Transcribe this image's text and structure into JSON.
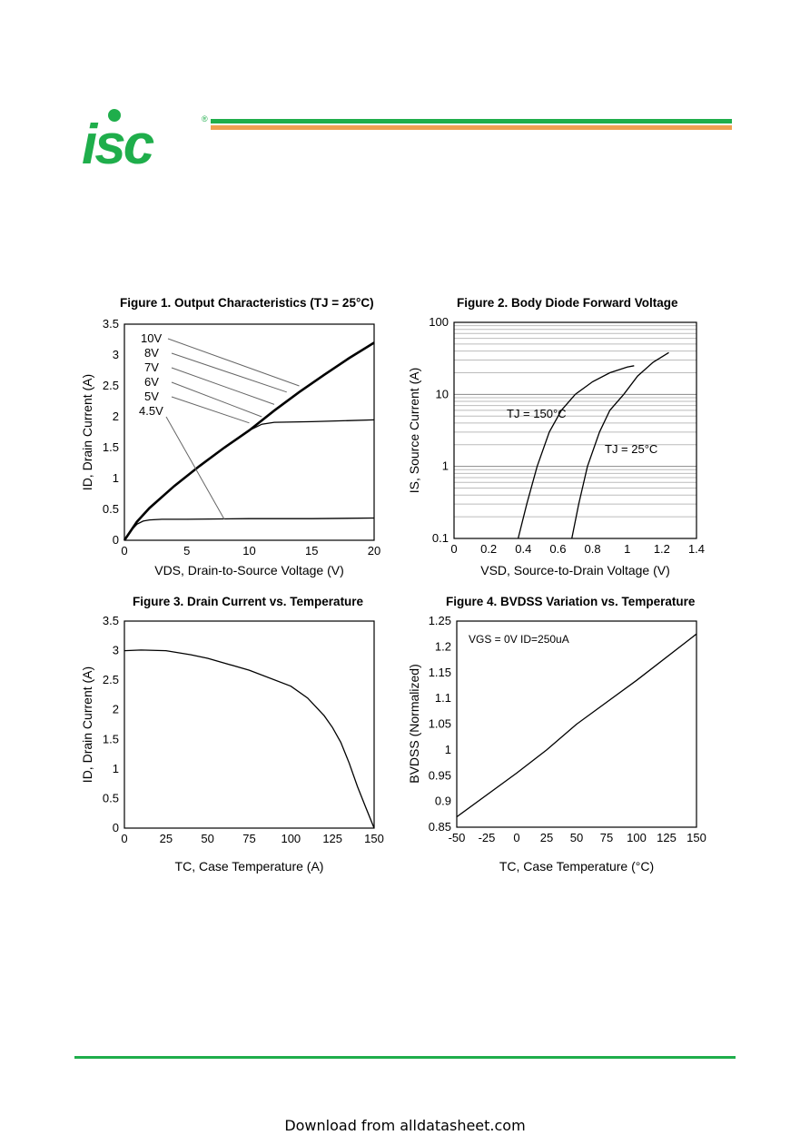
{
  "header": {
    "logo_text": "isc",
    "logo_mark": "®",
    "colors": {
      "brand_green": "#1fae4b",
      "brand_orange": "#f0a050"
    }
  },
  "footer": {
    "text": "Download from alldatasheet.com"
  },
  "chart_data": [
    {
      "type": "line",
      "title": "Figure 1. Output Characteristics (TJ = 25°C)",
      "xlabel": "VDS, Drain-to-Source Voltage (V)",
      "ylabel": "ID, Drain Current (A)",
      "xlim": [
        0,
        20
      ],
      "ylim": [
        0,
        3.5
      ],
      "xticks": [
        "0",
        "5",
        "10",
        "15",
        "20"
      ],
      "yticks": [
        "0",
        "0.5",
        "1",
        "1.5",
        "2",
        "2.5",
        "3",
        "3.5"
      ],
      "yscale": "linear",
      "grid": false,
      "annotations": [
        "10V",
        "8V",
        "7V",
        "6V",
        "5V",
        "4.5V"
      ],
      "series": [
        {
          "name": "10V",
          "x": [
            0,
            1,
            2,
            4,
            6,
            8,
            10,
            12,
            14,
            16,
            18,
            20
          ],
          "y": [
            0,
            0.3,
            0.52,
            0.88,
            1.2,
            1.5,
            1.78,
            2.1,
            2.4,
            2.68,
            2.95,
            3.2
          ]
        },
        {
          "name": "6V",
          "x": [
            0,
            1,
            2,
            4,
            6,
            8,
            10,
            11,
            12,
            15,
            20
          ],
          "y": [
            0,
            0.3,
            0.52,
            0.88,
            1.2,
            1.5,
            1.78,
            1.88,
            1.91,
            1.92,
            1.95
          ]
        },
        {
          "name": "4.5V",
          "x": [
            0,
            0.5,
            1,
            1.5,
            2,
            3,
            5,
            10,
            15,
            20
          ],
          "y": [
            0,
            0.15,
            0.26,
            0.31,
            0.33,
            0.34,
            0.34,
            0.35,
            0.35,
            0.36
          ]
        }
      ]
    },
    {
      "type": "line",
      "title": "Figure 2. Body Diode Forward Voltage",
      "xlabel": "VSD, Source-to-Drain Voltage (V)",
      "ylabel": "IS, Source Current (A)",
      "xlim": [
        0,
        1.4
      ],
      "ylim": [
        0.1,
        100
      ],
      "xticks": [
        "0",
        "0.2",
        "0.4",
        "0.6",
        "0.8",
        "1",
        "1.2",
        "1.4"
      ],
      "yticks": [
        "0.1",
        "1",
        "10",
        "100"
      ],
      "yscale": "log",
      "grid": true,
      "annotations": [
        "TJ = 150°C",
        "TJ = 25°C"
      ],
      "series": [
        {
          "name": "TJ = 150°C",
          "x": [
            0.37,
            0.42,
            0.48,
            0.55,
            0.62,
            0.7,
            0.8,
            0.9,
            1.0,
            1.04
          ],
          "y": [
            0.1,
            0.3,
            1,
            3,
            6,
            10,
            15,
            20,
            24,
            25
          ]
        },
        {
          "name": "TJ = 25°C",
          "x": [
            0.68,
            0.72,
            0.77,
            0.84,
            0.9,
            0.98,
            1.06,
            1.15,
            1.24
          ],
          "y": [
            0.1,
            0.3,
            1,
            3,
            6,
            10,
            18,
            28,
            38
          ]
        }
      ]
    },
    {
      "type": "line",
      "title": "Figure 3. Drain Current vs. Temperature",
      "xlabel": "TC, Case Temperature (A)",
      "ylabel": "ID, Drain Current (A)",
      "xlim": [
        0,
        150
      ],
      "ylim": [
        0,
        3.5
      ],
      "xticks": [
        "0",
        "25",
        "50",
        "75",
        "100",
        "125",
        "150"
      ],
      "yticks": [
        "0",
        "0.5",
        "1",
        "1.5",
        "2",
        "2.5",
        "3",
        "3.5"
      ],
      "yscale": "linear",
      "grid": false,
      "series": [
        {
          "name": "",
          "x": [
            0,
            10,
            25,
            40,
            50,
            75,
            100,
            110,
            120,
            125,
            130,
            135,
            140,
            145,
            150
          ],
          "y": [
            3.0,
            3.01,
            3.0,
            2.93,
            2.87,
            2.67,
            2.4,
            2.2,
            1.9,
            1.7,
            1.45,
            1.1,
            0.7,
            0.35,
            0
          ]
        }
      ]
    },
    {
      "type": "line",
      "title": "Figure 4. BVDSS Variation vs. Temperature",
      "xlabel": "TC, Case Temperature (°C)",
      "ylabel": "BVDSS (Normalized)",
      "xlim": [
        -50,
        150
      ],
      "ylim": [
        0.85,
        1.25
      ],
      "xticks": [
        "-50",
        "-25",
        "0",
        "25",
        "50",
        "75",
        "100",
        "125",
        "150"
      ],
      "yticks": [
        "0.85",
        "0.9",
        "0.95",
        "1",
        "1.05",
        "1.1",
        "1.15",
        "1.2",
        "1.25"
      ],
      "yscale": "linear",
      "grid": false,
      "annotations": [
        "VGS = 0V ID=250uA"
      ],
      "series": [
        {
          "name": "",
          "x": [
            -50,
            0,
            25,
            50,
            100,
            150
          ],
          "y": [
            0.87,
            0.955,
            1.0,
            1.05,
            1.135,
            1.225
          ]
        }
      ]
    }
  ]
}
